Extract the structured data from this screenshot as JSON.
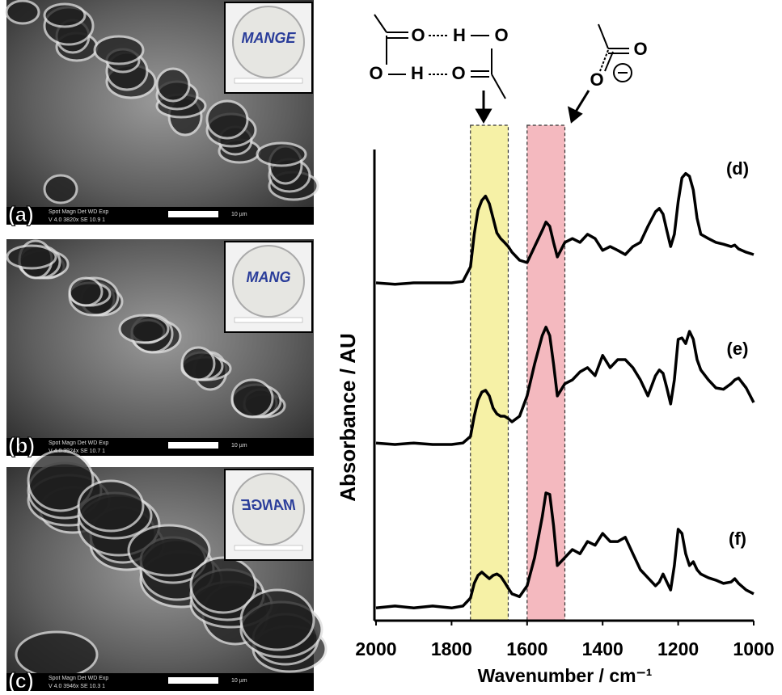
{
  "panels": [
    {
      "label": "(a)",
      "info_header": "Spot Magn  Det  WD  Exp",
      "info": "V 4.0  3820x  SE  10.9  1",
      "scale": "10 µm",
      "inset_text": "MANGE"
    },
    {
      "label": "(b)",
      "info_header": "Spot Magn  Det  WD  Exp",
      "info": "V 4.0  3924x  SE  10.7  1",
      "scale": "10 µm",
      "inset_text": "MANG"
    },
    {
      "label": "(c)",
      "info_header": "Spot Magn  Det  WD  Exp",
      "info": "V 4.0  3946x  SE  10.3  1",
      "scale": "10 µm",
      "inset_text": "MANGE"
    }
  ],
  "structures": {
    "dimer": [
      "O",
      "H",
      "O",
      "O",
      "H",
      "O"
    ],
    "carboxylate": [
      "O",
      "O"
    ]
  },
  "chart_data": {
    "type": "line",
    "x_label": "Wavenumber / cm⁻¹",
    "y_label": "Absorbance / AU",
    "xlim": [
      2000,
      1000
    ],
    "xticks": [
      2000,
      1800,
      1600,
      1400,
      1200,
      1000
    ],
    "ylim": [
      0,
      10
    ],
    "highlights": [
      {
        "xrange": [
          1750,
          1650
        ],
        "color": "#f6f1a6"
      },
      {
        "xrange": [
          1600,
          1500
        ],
        "color": "#f4b9bf"
      }
    ],
    "x": [
      2000,
      1950,
      1900,
      1850,
      1800,
      1770,
      1750,
      1740,
      1730,
      1720,
      1710,
      1700,
      1690,
      1680,
      1670,
      1660,
      1650,
      1640,
      1620,
      1600,
      1580,
      1560,
      1550,
      1540,
      1530,
      1520,
      1500,
      1480,
      1460,
      1440,
      1420,
      1400,
      1380,
      1360,
      1340,
      1320,
      1300,
      1280,
      1260,
      1250,
      1240,
      1230,
      1220,
      1210,
      1200,
      1190,
      1180,
      1170,
      1160,
      1150,
      1140,
      1120,
      1100,
      1080,
      1060,
      1050,
      1040,
      1020,
      1000
    ],
    "series": [
      {
        "name": "(d)",
        "color": "#000000",
        "values": [
          7.17,
          7.14,
          7.17,
          7.17,
          7.17,
          7.2,
          7.51,
          8.2,
          8.71,
          8.92,
          9.01,
          8.85,
          8.54,
          8.23,
          8.11,
          8.03,
          7.94,
          7.82,
          7.65,
          7.6,
          7.94,
          8.28,
          8.46,
          8.37,
          8.03,
          7.72,
          8.03,
          8.11,
          8.03,
          8.2,
          8.11,
          7.86,
          7.94,
          7.86,
          7.77,
          7.94,
          8.03,
          8.37,
          8.68,
          8.75,
          8.63,
          8.28,
          7.94,
          8.2,
          8.89,
          9.4,
          9.49,
          9.43,
          9.14,
          8.54,
          8.2,
          8.11,
          8.03,
          7.99,
          7.94,
          7.97,
          7.89,
          7.82,
          7.77
        ]
      },
      {
        "name": "(e)",
        "color": "#000000",
        "values": [
          3.77,
          3.74,
          3.77,
          3.74,
          3.74,
          3.77,
          3.91,
          4.34,
          4.68,
          4.85,
          4.89,
          4.77,
          4.51,
          4.39,
          4.34,
          4.34,
          4.29,
          4.22,
          4.34,
          4.77,
          5.45,
          6.05,
          6.23,
          6.05,
          5.45,
          4.77,
          5.03,
          5.11,
          5.28,
          5.37,
          5.2,
          5.63,
          5.37,
          5.54,
          5.54,
          5.37,
          5.11,
          4.77,
          5.2,
          5.32,
          5.25,
          4.94,
          4.6,
          5.11,
          5.97,
          6.0,
          5.88,
          6.14,
          5.97,
          5.54,
          5.32,
          5.11,
          4.94,
          4.91,
          5.03,
          5.11,
          5.15,
          4.94,
          4.63
        ]
      },
      {
        "name": "(f)",
        "color": "#000000",
        "values": [
          0.27,
          0.31,
          0.27,
          0.31,
          0.27,
          0.31,
          0.48,
          0.79,
          0.96,
          1.03,
          0.96,
          0.89,
          0.96,
          0.99,
          0.94,
          0.82,
          0.69,
          0.57,
          0.51,
          0.74,
          1.34,
          2.2,
          2.71,
          2.68,
          2.02,
          1.17,
          1.34,
          1.51,
          1.42,
          1.68,
          1.6,
          1.85,
          1.68,
          1.68,
          1.77,
          1.42,
          1.08,
          0.91,
          0.74,
          0.82,
          0.99,
          0.82,
          0.65,
          1.17,
          1.94,
          1.85,
          1.42,
          1.17,
          1.25,
          1.08,
          0.99,
          0.91,
          0.86,
          0.79,
          0.82,
          0.89,
          0.79,
          0.65,
          0.57
        ]
      }
    ]
  }
}
